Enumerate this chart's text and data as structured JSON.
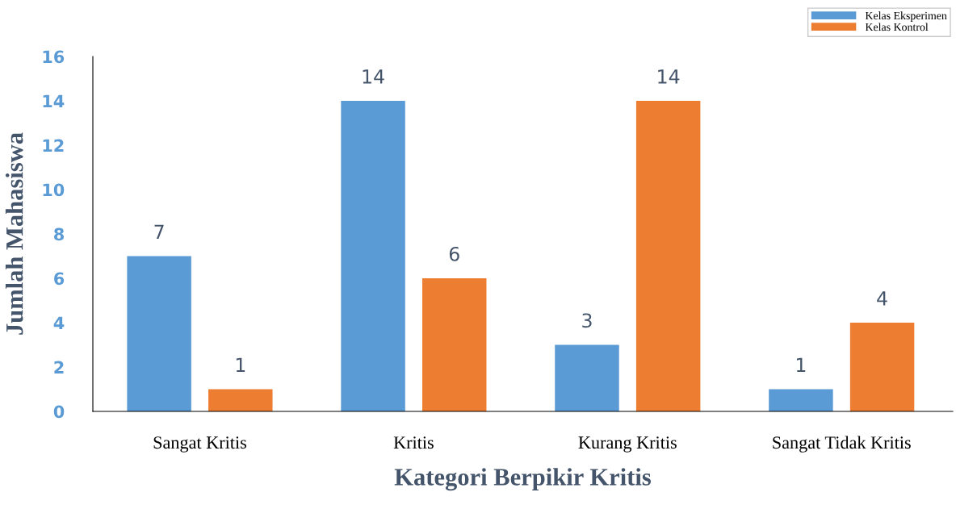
{
  "chart_data": {
    "type": "bar",
    "xlabel": "Kategori Berpikir Kritis",
    "ylabel": "Jumlah Mahasiswa",
    "categories": [
      "Sangat Kritis",
      "Kritis",
      "Kurang Kritis",
      "Sangat Tidak Kritis"
    ],
    "series": [
      {
        "name": "Kelas Eksperimen",
        "color": "#5b9bd5",
        "values": [
          7,
          14,
          3,
          1
        ]
      },
      {
        "name": "Kelas Kontrol",
        "color": "#ed7d31",
        "values": [
          1,
          6,
          14,
          4
        ]
      }
    ],
    "ylim": [
      0,
      16
    ],
    "yticks": [
      0,
      2,
      4,
      6,
      8,
      10,
      12,
      14,
      16
    ],
    "data_labels": true,
    "legend": "top right",
    "grid": false
  }
}
